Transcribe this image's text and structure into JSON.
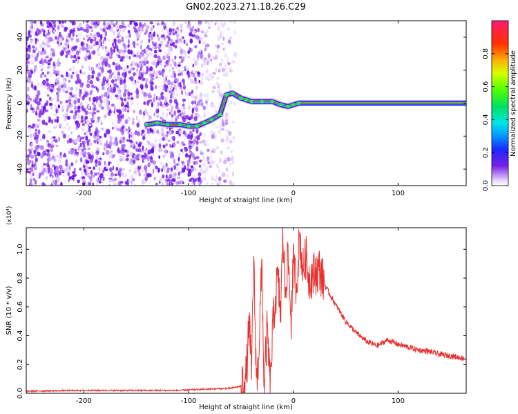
{
  "title": "GN02.2023.271.18.26.C29",
  "colors": {
    "axis": "#000000",
    "snr_line": "#e8302e"
  },
  "chart_data": [
    {
      "type": "heatmap",
      "xlabel": "Height of straight line (km)",
      "ylabel": "Frequency (Hz)",
      "xlim": [
        -255,
        165
      ],
      "ylim": [
        -50,
        50
      ],
      "xticks": [
        -200,
        -100,
        0,
        100
      ],
      "yticks": [
        -40,
        -20,
        0,
        20,
        40
      ],
      "noise_region_x": [
        -255,
        -75
      ],
      "trace": [
        {
          "x": -140,
          "y": -13
        },
        {
          "x": -130,
          "y": -12
        },
        {
          "x": -120,
          "y": -13
        },
        {
          "x": -108,
          "y": -13
        },
        {
          "x": -100,
          "y": -14
        },
        {
          "x": -92,
          "y": -14
        },
        {
          "x": -85,
          "y": -12
        },
        {
          "x": -78,
          "y": -10
        },
        {
          "x": -70,
          "y": -7
        },
        {
          "x": -64,
          "y": 5
        },
        {
          "x": -58,
          "y": 6
        },
        {
          "x": -50,
          "y": 3
        },
        {
          "x": -45,
          "y": 2
        },
        {
          "x": -40,
          "y": 1
        },
        {
          "x": -30,
          "y": 1
        },
        {
          "x": -20,
          "y": 1
        },
        {
          "x": -12,
          "y": -1
        },
        {
          "x": -5,
          "y": -2
        },
        {
          "x": 0,
          "y": -1
        },
        {
          "x": 5,
          "y": 0
        },
        {
          "x": 165,
          "y": 0
        }
      ],
      "colorbar": {
        "label": "Normalized spectral amplitude",
        "range": [
          0,
          1
        ],
        "ticks": [
          0.0,
          0.2,
          0.4,
          0.6,
          0.8
        ]
      }
    },
    {
      "type": "line",
      "xlabel": "Height of straight line (km)",
      "ylabel": "SNR (10 * v/v)",
      "multiplier": "(x10⁴)",
      "xlim": [
        -255,
        165
      ],
      "ylim": [
        0,
        1.15
      ],
      "xticks": [
        -200,
        -100,
        0,
        100
      ],
      "yticks": [
        0.0,
        0.2,
        0.4,
        0.6,
        0.8,
        1.0
      ],
      "x": [
        -255,
        -200,
        -150,
        -110,
        -80,
        -60,
        -50,
        -45,
        -42,
        -40,
        -38,
        -35,
        -33,
        -30,
        -28,
        -25,
        -22,
        -20,
        -18,
        -15,
        -12,
        -10,
        -8,
        -5,
        -2,
        0,
        3,
        6,
        9,
        12,
        15,
        20,
        25,
        30,
        40,
        50,
        60,
        70,
        80,
        90,
        100,
        110,
        120,
        130,
        140,
        150,
        165
      ],
      "y": [
        0.015,
        0.02,
        0.02,
        0.02,
        0.03,
        0.035,
        0.05,
        0.12,
        0.5,
        0.1,
        0.95,
        0.05,
        0.3,
        0.9,
        0.02,
        0.45,
        0.03,
        0.4,
        0.6,
        0.8,
        0.55,
        1.15,
        0.7,
        0.95,
        0.5,
        0.9,
        0.75,
        1.1,
        0.85,
        0.95,
        0.8,
        0.83,
        0.86,
        0.75,
        0.62,
        0.5,
        0.42,
        0.36,
        0.33,
        0.37,
        0.34,
        0.32,
        0.3,
        0.29,
        0.27,
        0.26,
        0.24
      ]
    }
  ]
}
